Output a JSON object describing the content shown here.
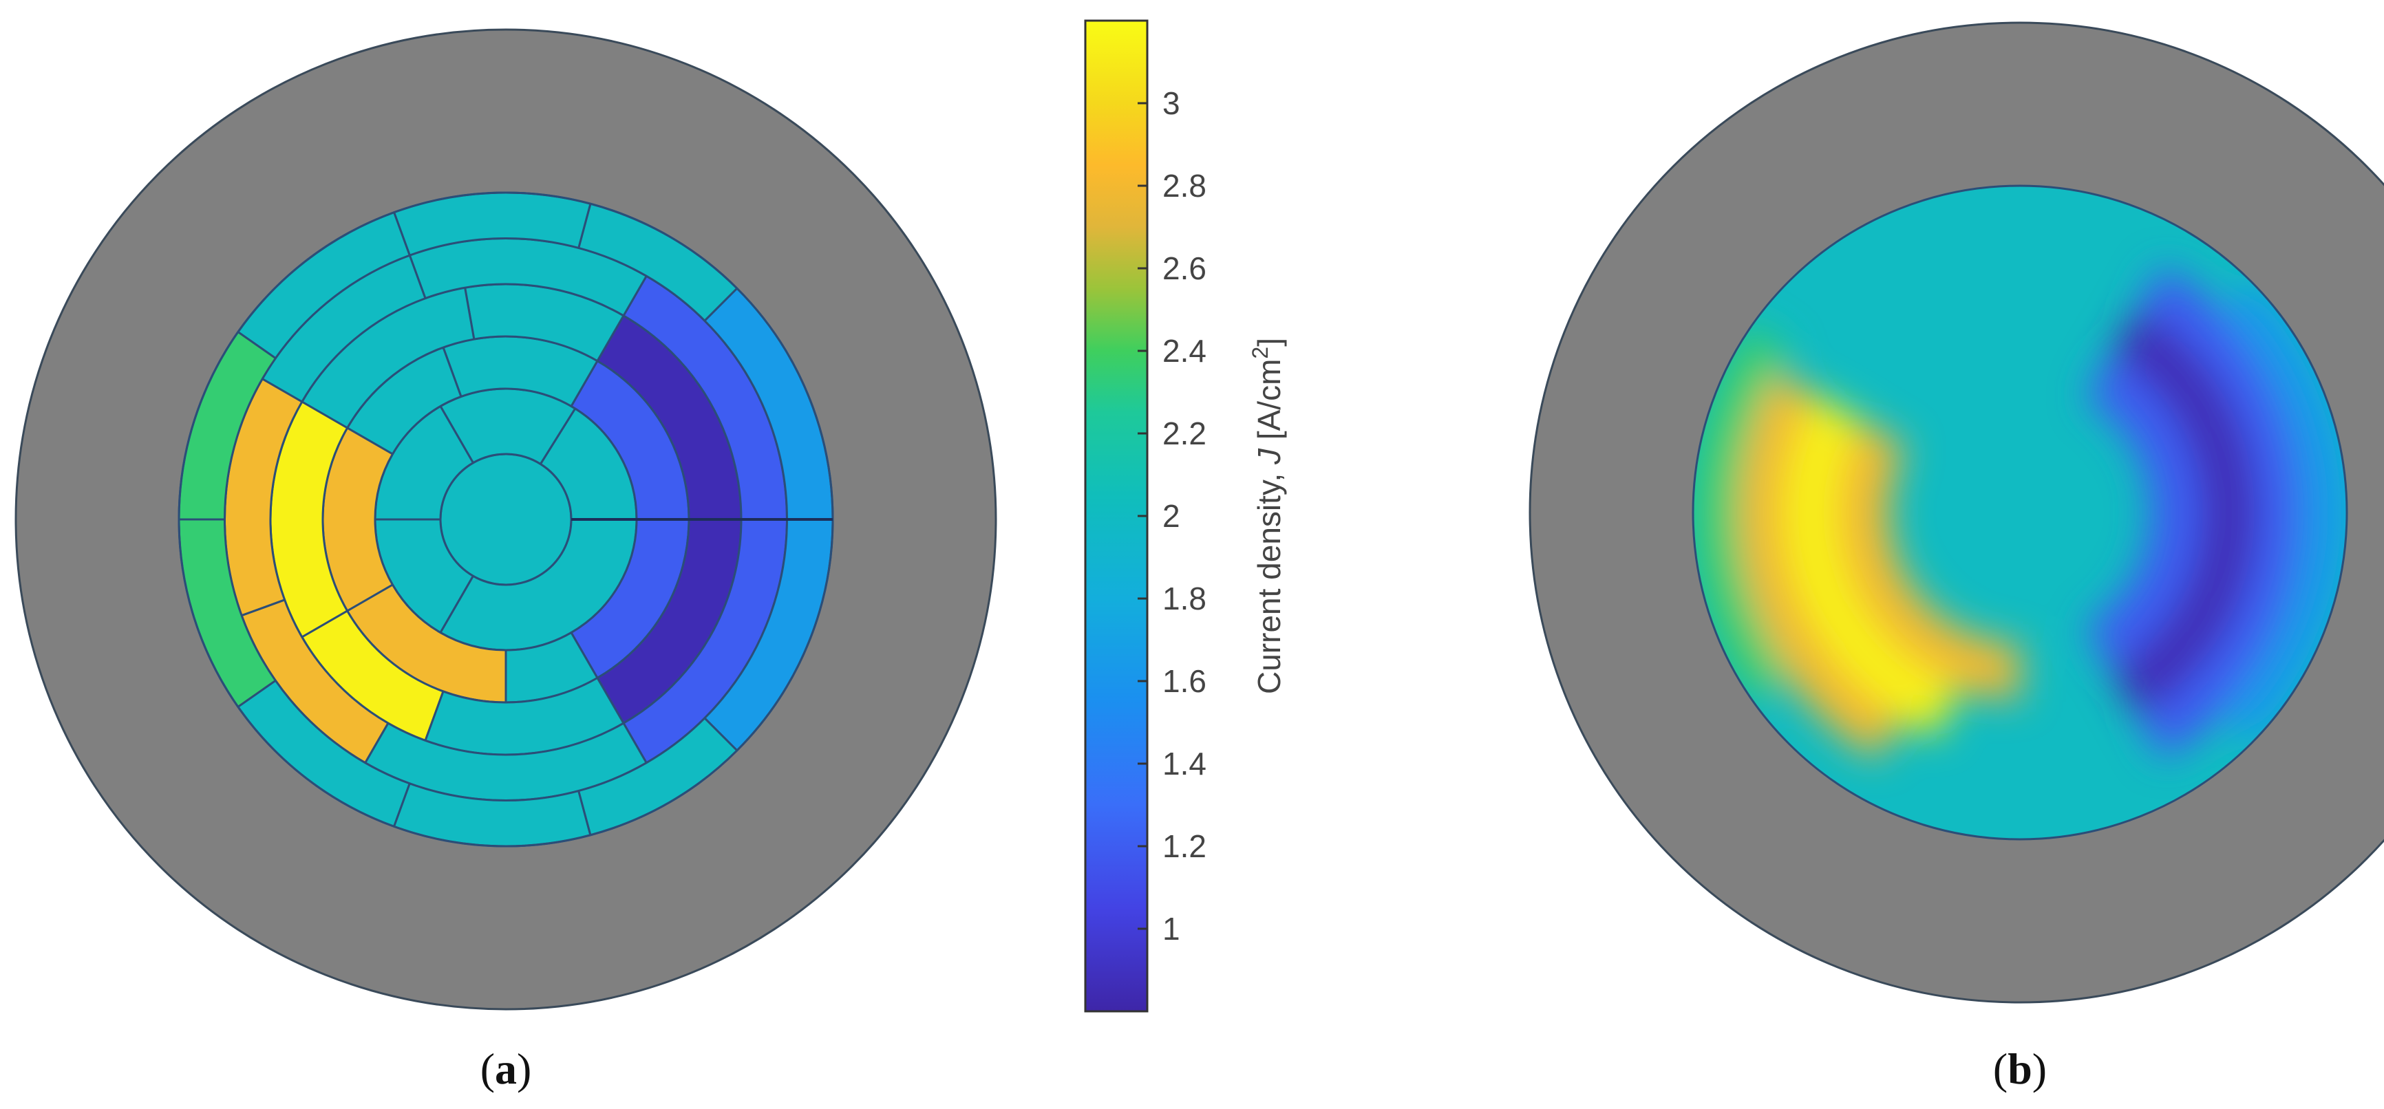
{
  "figure": {
    "panels": [
      {
        "label": "a",
        "description_type": "segmented"
      },
      {
        "label": "b",
        "description_type": "interpolated"
      }
    ]
  },
  "colors": {
    "outer_disk": "#808080",
    "outline": "#3a4a5a",
    "baseline": "#05bcbd",
    "segment_line": "#2b4e78"
  },
  "chart_data": {
    "type": "heatmap",
    "geometry": "polar",
    "colorbar": {
      "label_prefix": "Current density, ",
      "label_symbol": "J",
      "label_unit": " [A/cm",
      "label_exp": "2",
      "label_suffix": "]",
      "range": [
        0.8,
        3.2
      ],
      "ticks": [
        1,
        1.2,
        1.4,
        1.6,
        1.8,
        2,
        2.2,
        2.4,
        2.6,
        2.8,
        3
      ],
      "tick_labels": [
        "1",
        "1.2",
        "1.4",
        "1.6",
        "1.8",
        "2",
        "2.2",
        "2.4",
        "2.6",
        "2.8",
        "3"
      ],
      "stops": [
        [
          0.8,
          "#3e26a8"
        ],
        [
          1.05,
          "#4343e4"
        ],
        [
          1.3,
          "#3a6ef9"
        ],
        [
          1.55,
          "#1b8ff0"
        ],
        [
          1.8,
          "#13aedc"
        ],
        [
          2.05,
          "#10bebb"
        ],
        [
          2.25,
          "#1ec99a"
        ],
        [
          2.4,
          "#3fcf5e"
        ],
        [
          2.55,
          "#9bc43a"
        ],
        [
          2.7,
          "#e0b63a"
        ],
        [
          2.85,
          "#fdba2b"
        ],
        [
          3.0,
          "#f5d81c"
        ],
        [
          3.2,
          "#f9fb15"
        ]
      ]
    },
    "background_value": 2.0,
    "rings": [
      {
        "r_inner": 0,
        "r_outer": 0.2
      },
      {
        "r_inner": 0.2,
        "r_outer": 0.4
      },
      {
        "r_inner": 0.4,
        "r_outer": 0.56
      },
      {
        "r_inner": 0.56,
        "r_outer": 0.72
      },
      {
        "r_inner": 0.72,
        "r_outer": 0.86
      },
      {
        "r_inner": 0.86,
        "r_outer": 1.0
      }
    ],
    "segments": [
      {
        "ring": 0,
        "a0": 0,
        "a1": 360,
        "value": 2.0
      },
      {
        "ring": 1,
        "a0": 0,
        "a1": 58,
        "value": 2.0
      },
      {
        "ring": 1,
        "a0": 58,
        "a1": 120,
        "value": 2.0
      },
      {
        "ring": 1,
        "a0": 120,
        "a1": 180,
        "value": 2.0
      },
      {
        "ring": 1,
        "a0": 180,
        "a1": 240,
        "value": 2.0
      },
      {
        "ring": 1,
        "a0": 240,
        "a1": 360,
        "value": 2.0
      },
      {
        "ring": 2,
        "a0": -60,
        "a1": 0,
        "value": 1.2
      },
      {
        "ring": 2,
        "a0": 0,
        "a1": 60,
        "value": 1.2
      },
      {
        "ring": 2,
        "a0": 60,
        "a1": 110,
        "value": 2.0
      },
      {
        "ring": 2,
        "a0": 110,
        "a1": 150,
        "value": 2.0
      },
      {
        "ring": 2,
        "a0": 150,
        "a1": 210,
        "value": 2.8
      },
      {
        "ring": 2,
        "a0": 210,
        "a1": 270,
        "value": 2.8
      },
      {
        "ring": 2,
        "a0": 270,
        "a1": 300,
        "value": 2.0
      },
      {
        "ring": 3,
        "a0": -60,
        "a1": 0,
        "value": 0.85
      },
      {
        "ring": 3,
        "a0": 0,
        "a1": 60,
        "value": 0.85
      },
      {
        "ring": 3,
        "a0": 60,
        "a1": 100,
        "value": 2.0
      },
      {
        "ring": 3,
        "a0": 100,
        "a1": 150,
        "value": 2.0
      },
      {
        "ring": 3,
        "a0": 150,
        "a1": 210,
        "value": 3.15
      },
      {
        "ring": 3,
        "a0": 210,
        "a1": 250,
        "value": 3.15
      },
      {
        "ring": 3,
        "a0": 250,
        "a1": 300,
        "value": 2.0
      },
      {
        "ring": 4,
        "a0": -60,
        "a1": 0,
        "value": 1.2
      },
      {
        "ring": 4,
        "a0": 0,
        "a1": 60,
        "value": 1.2
      },
      {
        "ring": 4,
        "a0": 60,
        "a1": 110,
        "value": 2.0
      },
      {
        "ring": 4,
        "a0": 110,
        "a1": 150,
        "value": 2.0
      },
      {
        "ring": 4,
        "a0": 150,
        "a1": 200,
        "value": 2.8
      },
      {
        "ring": 4,
        "a0": 200,
        "a1": 240,
        "value": 2.8
      },
      {
        "ring": 4,
        "a0": 240,
        "a1": 300,
        "value": 2.0
      },
      {
        "ring": 5,
        "a0": -45,
        "a1": 0,
        "value": 1.65
      },
      {
        "ring": 5,
        "a0": 0,
        "a1": 45,
        "value": 1.65
      },
      {
        "ring": 5,
        "a0": 45,
        "a1": 75,
        "value": 2.0
      },
      {
        "ring": 5,
        "a0": 75,
        "a1": 110,
        "value": 2.0
      },
      {
        "ring": 5,
        "a0": 110,
        "a1": 145,
        "value": 2.0
      },
      {
        "ring": 5,
        "a0": 145,
        "a1": 180,
        "value": 2.35
      },
      {
        "ring": 5,
        "a0": 180,
        "a1": 215,
        "value": 2.35
      },
      {
        "ring": 5,
        "a0": 215,
        "a1": 250,
        "value": 2.0
      },
      {
        "ring": 5,
        "a0": 250,
        "a1": 285,
        "value": 2.0
      },
      {
        "ring": 5,
        "a0": 285,
        "a1": 315,
        "value": 2.0
      }
    ]
  }
}
